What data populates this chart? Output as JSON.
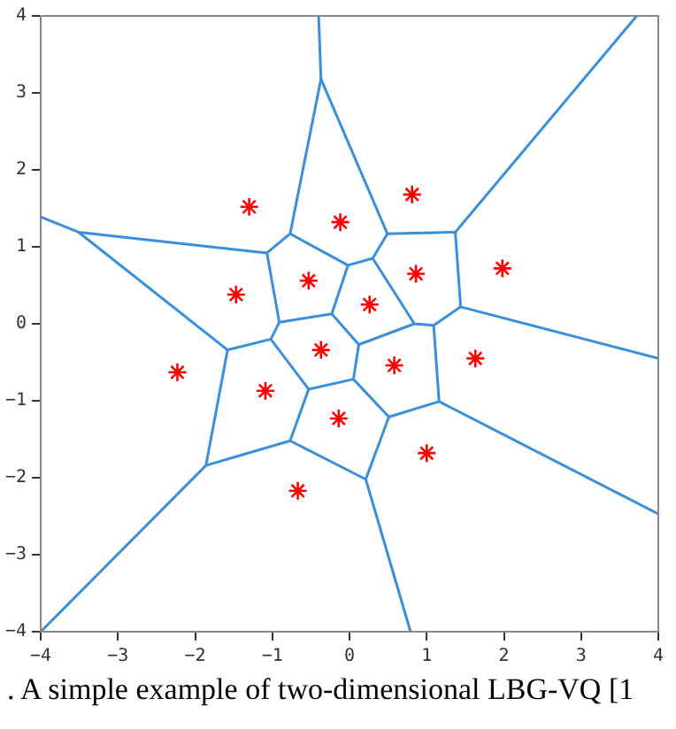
{
  "chart_data": {
    "type": "scatter",
    "xlim": [
      -4,
      4
    ],
    "ylim": [
      -4,
      4
    ],
    "xticks": [
      -4,
      -3,
      -2,
      -1,
      0,
      1,
      2,
      3,
      4
    ],
    "yticks": [
      -4,
      -3,
      -2,
      -1,
      0,
      1,
      2,
      3,
      4
    ],
    "grid": false,
    "legend": false,
    "annotations": [
      ". A simple example of two-dimensional LBG-VQ [1"
    ],
    "series": [
      {
        "type": "line",
        "color": "#3a8fdc",
        "marker": "none",
        "x": [
          -0.4,
          -0.37,
          -0.77,
          -1.07,
          -3.51,
          -4
        ],
        "values": [
          4,
          3.18,
          1.17,
          0.92,
          1.19,
          1.39
        ]
      },
      {
        "type": "line",
        "color": "#3a8fdc",
        "marker": "none",
        "x": [
          -0.37,
          0.49,
          1.37,
          3.72
        ],
        "values": [
          3.18,
          1.17,
          1.19,
          4
        ]
      },
      {
        "type": "line",
        "color": "#3a8fdc",
        "marker": "none",
        "x": [
          1.37,
          1.44,
          4
        ],
        "values": [
          1.19,
          0.22,
          -0.45
        ]
      },
      {
        "type": "line",
        "color": "#3a8fdc",
        "marker": "none",
        "x": [
          1.44,
          1.09,
          0.84,
          0.3,
          0.49
        ],
        "values": [
          0.22,
          -0.02,
          0,
          0.85,
          1.17
        ]
      },
      {
        "type": "line",
        "color": "#3a8fdc",
        "marker": "none",
        "x": [
          0.3,
          -0.02,
          -0.77
        ],
        "values": [
          0.85,
          0.76,
          1.17
        ]
      },
      {
        "type": "line",
        "color": "#3a8fdc",
        "marker": "none",
        "x": [
          -0.02,
          -0.23,
          -0.91,
          -1.07
        ],
        "values": [
          0.76,
          0.13,
          0.02,
          0.92
        ]
      },
      {
        "type": "line",
        "color": "#3a8fdc",
        "marker": "none",
        "x": [
          -3.51,
          -1.58,
          -1.02,
          -0.91
        ],
        "values": [
          1.19,
          -0.34,
          -0.2,
          0.02
        ]
      },
      {
        "type": "line",
        "color": "#3a8fdc",
        "marker": "none",
        "x": [
          -1.58,
          -1.86,
          -4
        ],
        "values": [
          -0.34,
          -1.84,
          -4
        ]
      },
      {
        "type": "line",
        "color": "#3a8fdc",
        "marker": "none",
        "x": [
          -1.86,
          -0.77,
          -0.53,
          -1.02
        ],
        "values": [
          -1.84,
          -1.52,
          -0.85,
          -0.2
        ]
      },
      {
        "type": "line",
        "color": "#3a8fdc",
        "marker": "none",
        "x": [
          -0.53,
          0.05,
          0.12,
          -0.23
        ],
        "values": [
          -0.85,
          -0.72,
          -0.27,
          0.13
        ]
      },
      {
        "type": "line",
        "color": "#3a8fdc",
        "marker": "none",
        "x": [
          0.12,
          0.84
        ],
        "values": [
          -0.27,
          0
        ]
      },
      {
        "type": "line",
        "color": "#3a8fdc",
        "marker": "none",
        "x": [
          0.05,
          0.51,
          1.16,
          1.09
        ],
        "values": [
          -0.72,
          -1.21,
          -1.01,
          -0.02
        ]
      },
      {
        "type": "line",
        "color": "#3a8fdc",
        "marker": "none",
        "x": [
          1.16,
          4
        ],
        "values": [
          -1.01,
          -2.47
        ]
      },
      {
        "type": "line",
        "color": "#3a8fdc",
        "marker": "none",
        "x": [
          0.51,
          0.21,
          0.79
        ],
        "values": [
          -1.21,
          -2.02,
          -4
        ]
      },
      {
        "type": "line",
        "color": "#3a8fdc",
        "marker": "none",
        "x": [
          0.21,
          -0.77
        ],
        "values": [
          -2.02,
          -1.52
        ]
      },
      {
        "type": "scatter",
        "color": "#ff0000",
        "marker": "cross",
        "x": [
          -1.3,
          -0.12,
          0.81,
          -0.53,
          -1.47,
          0.86,
          1.98,
          0.26,
          -2.23,
          -1.09,
          -0.37,
          0.58,
          1.63,
          -0.14,
          1.0,
          -0.67
        ],
        "values": [
          1.52,
          1.32,
          1.68,
          0.56,
          0.38,
          0.65,
          0.72,
          0.25,
          -0.63,
          -0.87,
          -0.34,
          -0.54,
          -0.45,
          -1.23,
          -1.68,
          -2.17
        ]
      }
    ]
  }
}
